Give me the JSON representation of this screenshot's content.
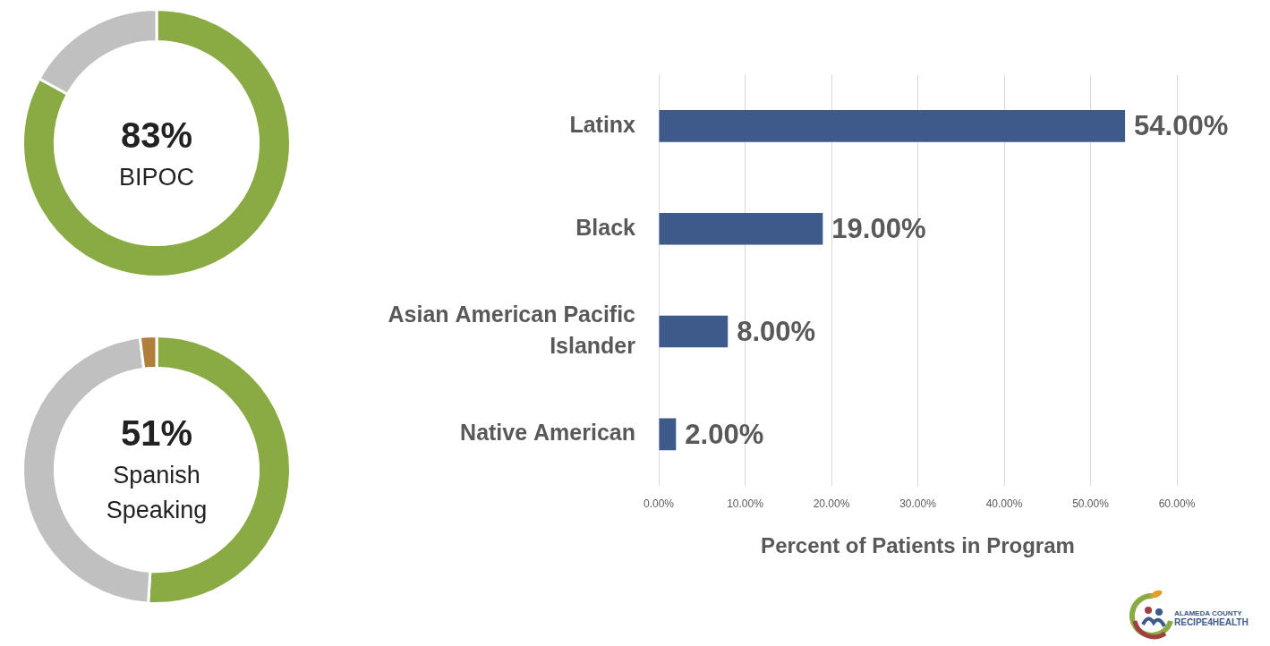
{
  "chart_data": [
    {
      "type": "doughnut",
      "categories": [
        "BIPOC",
        null
      ],
      "values": [
        83,
        17
      ],
      "value_labels": [
        "83%",
        null
      ],
      "colors": [
        "#8aab44",
        "#c0c0c0"
      ]
    },
    {
      "type": "doughnut",
      "categories": [
        "Spanish Speaking",
        null,
        null
      ],
      "values": [
        51,
        47,
        2
      ],
      "value_labels": [
        "51%",
        null,
        null
      ],
      "colors": [
        "#8aab44",
        "#c0c0c0",
        "#b07d3a"
      ]
    },
    {
      "type": "bar",
      "orientation": "horizontal",
      "x_label": "Percent of Patients in Program",
      "categories": [
        "Latinx",
        "Black",
        "Asian American Pacific Islander",
        "Native American"
      ],
      "values": [
        54,
        19,
        8,
        2
      ],
      "value_labels": [
        "54.00%",
        "19.00%",
        "8.00%",
        "2.00%"
      ],
      "color": "#3d5a8a",
      "xlim": [
        0,
        60
      ],
      "xticks": [
        {
          "value": 0,
          "label": "0.00%"
        },
        {
          "value": 10,
          "label": "10.00%"
        },
        {
          "value": 20,
          "label": "20.00%"
        },
        {
          "value": 30,
          "label": "30.00%"
        },
        {
          "value": 40,
          "label": "40.00%"
        },
        {
          "value": 50,
          "label": "50.00%"
        },
        {
          "value": 60,
          "label": "60.00%"
        }
      ],
      "grid": true,
      "data_labels": true
    }
  ],
  "logo": {
    "lines": [
      "ALAMEDA COUNTY",
      "RECIPE4HEALTH"
    ]
  }
}
